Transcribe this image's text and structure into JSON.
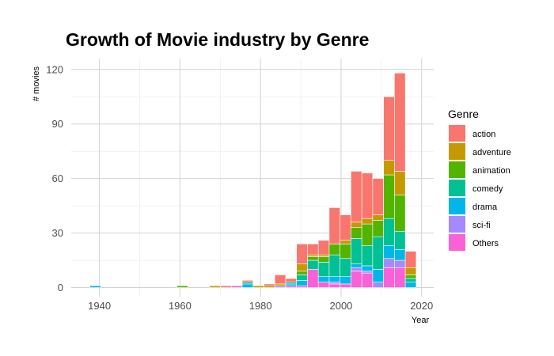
{
  "chart_data": {
    "type": "bar",
    "stacked": true,
    "title": "Growth of Movie industry by Genre",
    "xlabel": "Year",
    "ylabel": "# movies",
    "xlim": [
      1933,
      2023
    ],
    "ylim": [
      -5,
      126
    ],
    "x_ticks": [
      1940,
      1960,
      1980,
      2000,
      2020
    ],
    "y_ticks": [
      0,
      30,
      60,
      90,
      120
    ],
    "grid": true,
    "bin_width": 2.7,
    "legend": {
      "title": "Genre",
      "position": "right"
    },
    "series": [
      {
        "name": "action",
        "color": "#F8766D"
      },
      {
        "name": "adventure",
        "color": "#C49A00"
      },
      {
        "name": "animation",
        "color": "#53B400"
      },
      {
        "name": "comedy",
        "color": "#00C094"
      },
      {
        "name": "drama",
        "color": "#00B6EB"
      },
      {
        "name": "sci-fi",
        "color": "#A58AFF"
      },
      {
        "name": "Others",
        "color": "#FB61D7"
      }
    ],
    "bins": [
      {
        "x": 1939.0,
        "values": [
          0,
          0,
          0,
          0,
          1,
          0,
          0
        ]
      },
      {
        "x": 1960.6,
        "values": [
          0,
          0,
          1,
          0,
          0,
          0,
          0
        ]
      },
      {
        "x": 1968.7,
        "values": [
          0,
          1,
          0,
          0,
          0,
          0,
          0
        ]
      },
      {
        "x": 1971.4,
        "values": [
          1,
          0,
          0,
          0,
          0,
          0,
          0
        ]
      },
      {
        "x": 1974.1,
        "values": [
          0,
          0,
          0,
          0,
          0,
          0,
          1
        ]
      },
      {
        "x": 1976.8,
        "values": [
          1,
          0,
          0,
          1,
          2,
          0,
          0
        ]
      },
      {
        "x": 1979.5,
        "values": [
          0,
          1,
          0,
          0,
          0,
          0,
          0
        ]
      },
      {
        "x": 1982.2,
        "values": [
          1,
          1,
          0,
          0,
          0,
          0,
          0
        ]
      },
      {
        "x": 1984.9,
        "values": [
          5,
          1,
          0,
          0,
          0,
          1,
          0
        ]
      },
      {
        "x": 1987.6,
        "values": [
          2,
          0,
          0,
          1,
          1,
          0,
          1
        ]
      },
      {
        "x": 1990.3,
        "values": [
          11,
          4,
          2,
          3,
          3,
          0,
          1
        ]
      },
      {
        "x": 1993.0,
        "values": [
          6,
          1,
          2,
          5,
          0,
          0,
          10
        ]
      },
      {
        "x": 1995.7,
        "values": [
          8,
          1,
          3,
          8,
          3,
          0,
          3
        ]
      },
      {
        "x": 1998.4,
        "values": [
          20,
          0,
          6,
          12,
          3,
          1,
          2
        ]
      },
      {
        "x": 2001.1,
        "values": [
          14,
          2,
          8,
          10,
          4,
          0,
          2
        ]
      },
      {
        "x": 2003.8,
        "values": [
          28,
          3,
          6,
          14,
          2,
          2,
          9
        ]
      },
      {
        "x": 2006.5,
        "values": [
          25,
          3,
          12,
          11,
          3,
          1,
          8
        ]
      },
      {
        "x": 2009.2,
        "values": [
          20,
          3,
          9,
          18,
          7,
          3,
          0
        ]
      },
      {
        "x": 2011.9,
        "values": [
          35,
          8,
          24,
          15,
          7,
          5,
          11
        ]
      },
      {
        "x": 2014.6,
        "values": [
          54,
          13,
          20,
          10,
          6,
          4,
          11
        ]
      },
      {
        "x": 2017.3,
        "values": [
          9,
          4,
          2,
          2,
          3,
          0,
          0
        ]
      }
    ]
  }
}
